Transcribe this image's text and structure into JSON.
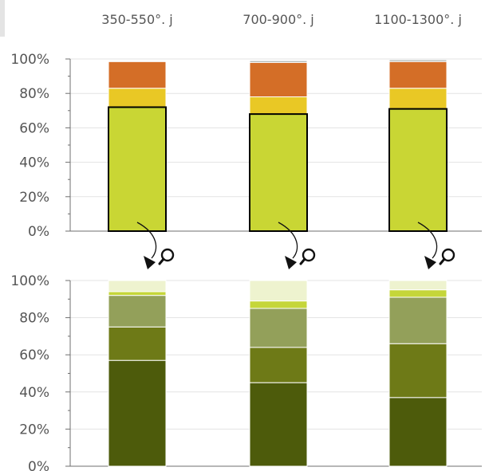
{
  "categories": [
    "350-550°. j",
    "700-900°. j",
    "1100-1300°. j"
  ],
  "colors": {
    "grid": "#e3e3e3",
    "axis": "#6f6f6f",
    "text": "#555555",
    "top_chart_segments": [
      "#c9d634",
      "#e9c825",
      "#d46e27",
      "#a9b0ad"
    ],
    "bottom_chart_segments": [
      "#4d5b0b",
      "#6e7a17",
      "#93a05a",
      "#c5d63a",
      "#eef3cf"
    ]
  },
  "icons": [
    "zoom-arrow-icon",
    "magnifier-icon"
  ],
  "chart_data": [
    {
      "type": "bar",
      "stacked": true,
      "categories": [
        "350-550°. j",
        "700-900°. j",
        "1100-1300°. j"
      ],
      "ylim": [
        0,
        100
      ],
      "yticks": [
        "0%",
        "20%",
        "40%",
        "60%",
        "80%",
        "100%"
      ],
      "grid": true,
      "series": [
        {
          "values": [
            72,
            68,
            71
          ]
        },
        {
          "values": [
            11,
            10,
            12
          ]
        },
        {
          "values": [
            15.5,
            20,
            15.5
          ]
        },
        {
          "values": [
            0.5,
            1,
            1
          ]
        }
      ]
    },
    {
      "type": "bar",
      "stacked": true,
      "categories": [
        "350-550°. j",
        "700-900°. j",
        "1100-1300°. j"
      ],
      "ylim": [
        0,
        100
      ],
      "yticks": [
        "0%",
        "20%",
        "40%",
        "60%",
        "80%",
        "100%"
      ],
      "grid": true,
      "series": [
        {
          "values": [
            57,
            45,
            37
          ]
        },
        {
          "values": [
            18,
            19,
            29
          ]
        },
        {
          "values": [
            17,
            21,
            25
          ]
        },
        {
          "values": [
            2,
            4,
            4
          ]
        },
        {
          "values": [
            6,
            11,
            5
          ]
        }
      ]
    }
  ]
}
